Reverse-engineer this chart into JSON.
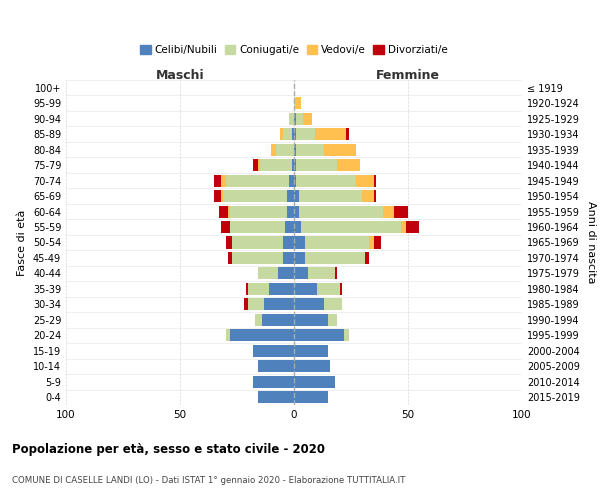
{
  "age_groups": [
    "0-4",
    "5-9",
    "10-14",
    "15-19",
    "20-24",
    "25-29",
    "30-34",
    "35-39",
    "40-44",
    "45-49",
    "50-54",
    "55-59",
    "60-64",
    "65-69",
    "70-74",
    "75-79",
    "80-84",
    "85-89",
    "90-94",
    "95-99",
    "100+"
  ],
  "birth_years": [
    "2015-2019",
    "2010-2014",
    "2005-2009",
    "2000-2004",
    "1995-1999",
    "1990-1994",
    "1985-1989",
    "1980-1984",
    "1975-1979",
    "1970-1974",
    "1965-1969",
    "1960-1964",
    "1955-1959",
    "1950-1954",
    "1945-1949",
    "1940-1944",
    "1935-1939",
    "1930-1934",
    "1925-1929",
    "1920-1924",
    "≤ 1919"
  ],
  "colors": {
    "celibi": "#4f81bd",
    "coniugati": "#c6d9a0",
    "vedovi": "#ffc050",
    "divorziati": "#c0000b"
  },
  "maschi": {
    "celibi": [
      16,
      18,
      16,
      18,
      28,
      14,
      13,
      11,
      7,
      5,
      5,
      4,
      3,
      3,
      2,
      1,
      0,
      1,
      0,
      0,
      0
    ],
    "coniugati": [
      0,
      0,
      0,
      0,
      2,
      3,
      7,
      9,
      9,
      22,
      22,
      24,
      25,
      28,
      28,
      14,
      8,
      4,
      2,
      0,
      0
    ],
    "vedovi": [
      0,
      0,
      0,
      0,
      0,
      0,
      0,
      0,
      0,
      0,
      0,
      0,
      1,
      1,
      2,
      1,
      2,
      1,
      0,
      0,
      0
    ],
    "divorziati": [
      0,
      0,
      0,
      0,
      0,
      0,
      2,
      1,
      0,
      2,
      3,
      4,
      4,
      3,
      3,
      2,
      0,
      0,
      0,
      0,
      0
    ]
  },
  "femmine": {
    "celibi": [
      15,
      18,
      16,
      15,
      22,
      15,
      13,
      10,
      6,
      5,
      5,
      3,
      2,
      2,
      1,
      1,
      1,
      1,
      1,
      0,
      0
    ],
    "coniugati": [
      0,
      0,
      0,
      0,
      2,
      4,
      8,
      10,
      12,
      26,
      28,
      44,
      37,
      28,
      26,
      18,
      12,
      8,
      3,
      1,
      0
    ],
    "vedovi": [
      0,
      0,
      0,
      0,
      0,
      0,
      0,
      0,
      0,
      0,
      2,
      2,
      5,
      5,
      8,
      10,
      14,
      14,
      4,
      2,
      0
    ],
    "divorziati": [
      0,
      0,
      0,
      0,
      0,
      0,
      0,
      1,
      1,
      2,
      3,
      6,
      6,
      1,
      1,
      0,
      0,
      1,
      0,
      0,
      0
    ]
  },
  "title": "Popolazione per età, sesso e stato civile - 2020",
  "subtitle": "COMUNE DI CASELLE LANDI (LO) - Dati ISTAT 1° gennaio 2020 - Elaborazione TUTTITALIA.IT",
  "xlabel_left": "Maschi",
  "xlabel_right": "Femmine",
  "ylabel_left": "Fasce di età",
  "ylabel_right": "Anni di nascita",
  "xlim": 100,
  "legend_labels": [
    "Celibi/Nubili",
    "Coniugati/e",
    "Vedovi/e",
    "Divorziati/e"
  ],
  "background_color": "#ffffff",
  "grid_color": "#c8c8c8"
}
